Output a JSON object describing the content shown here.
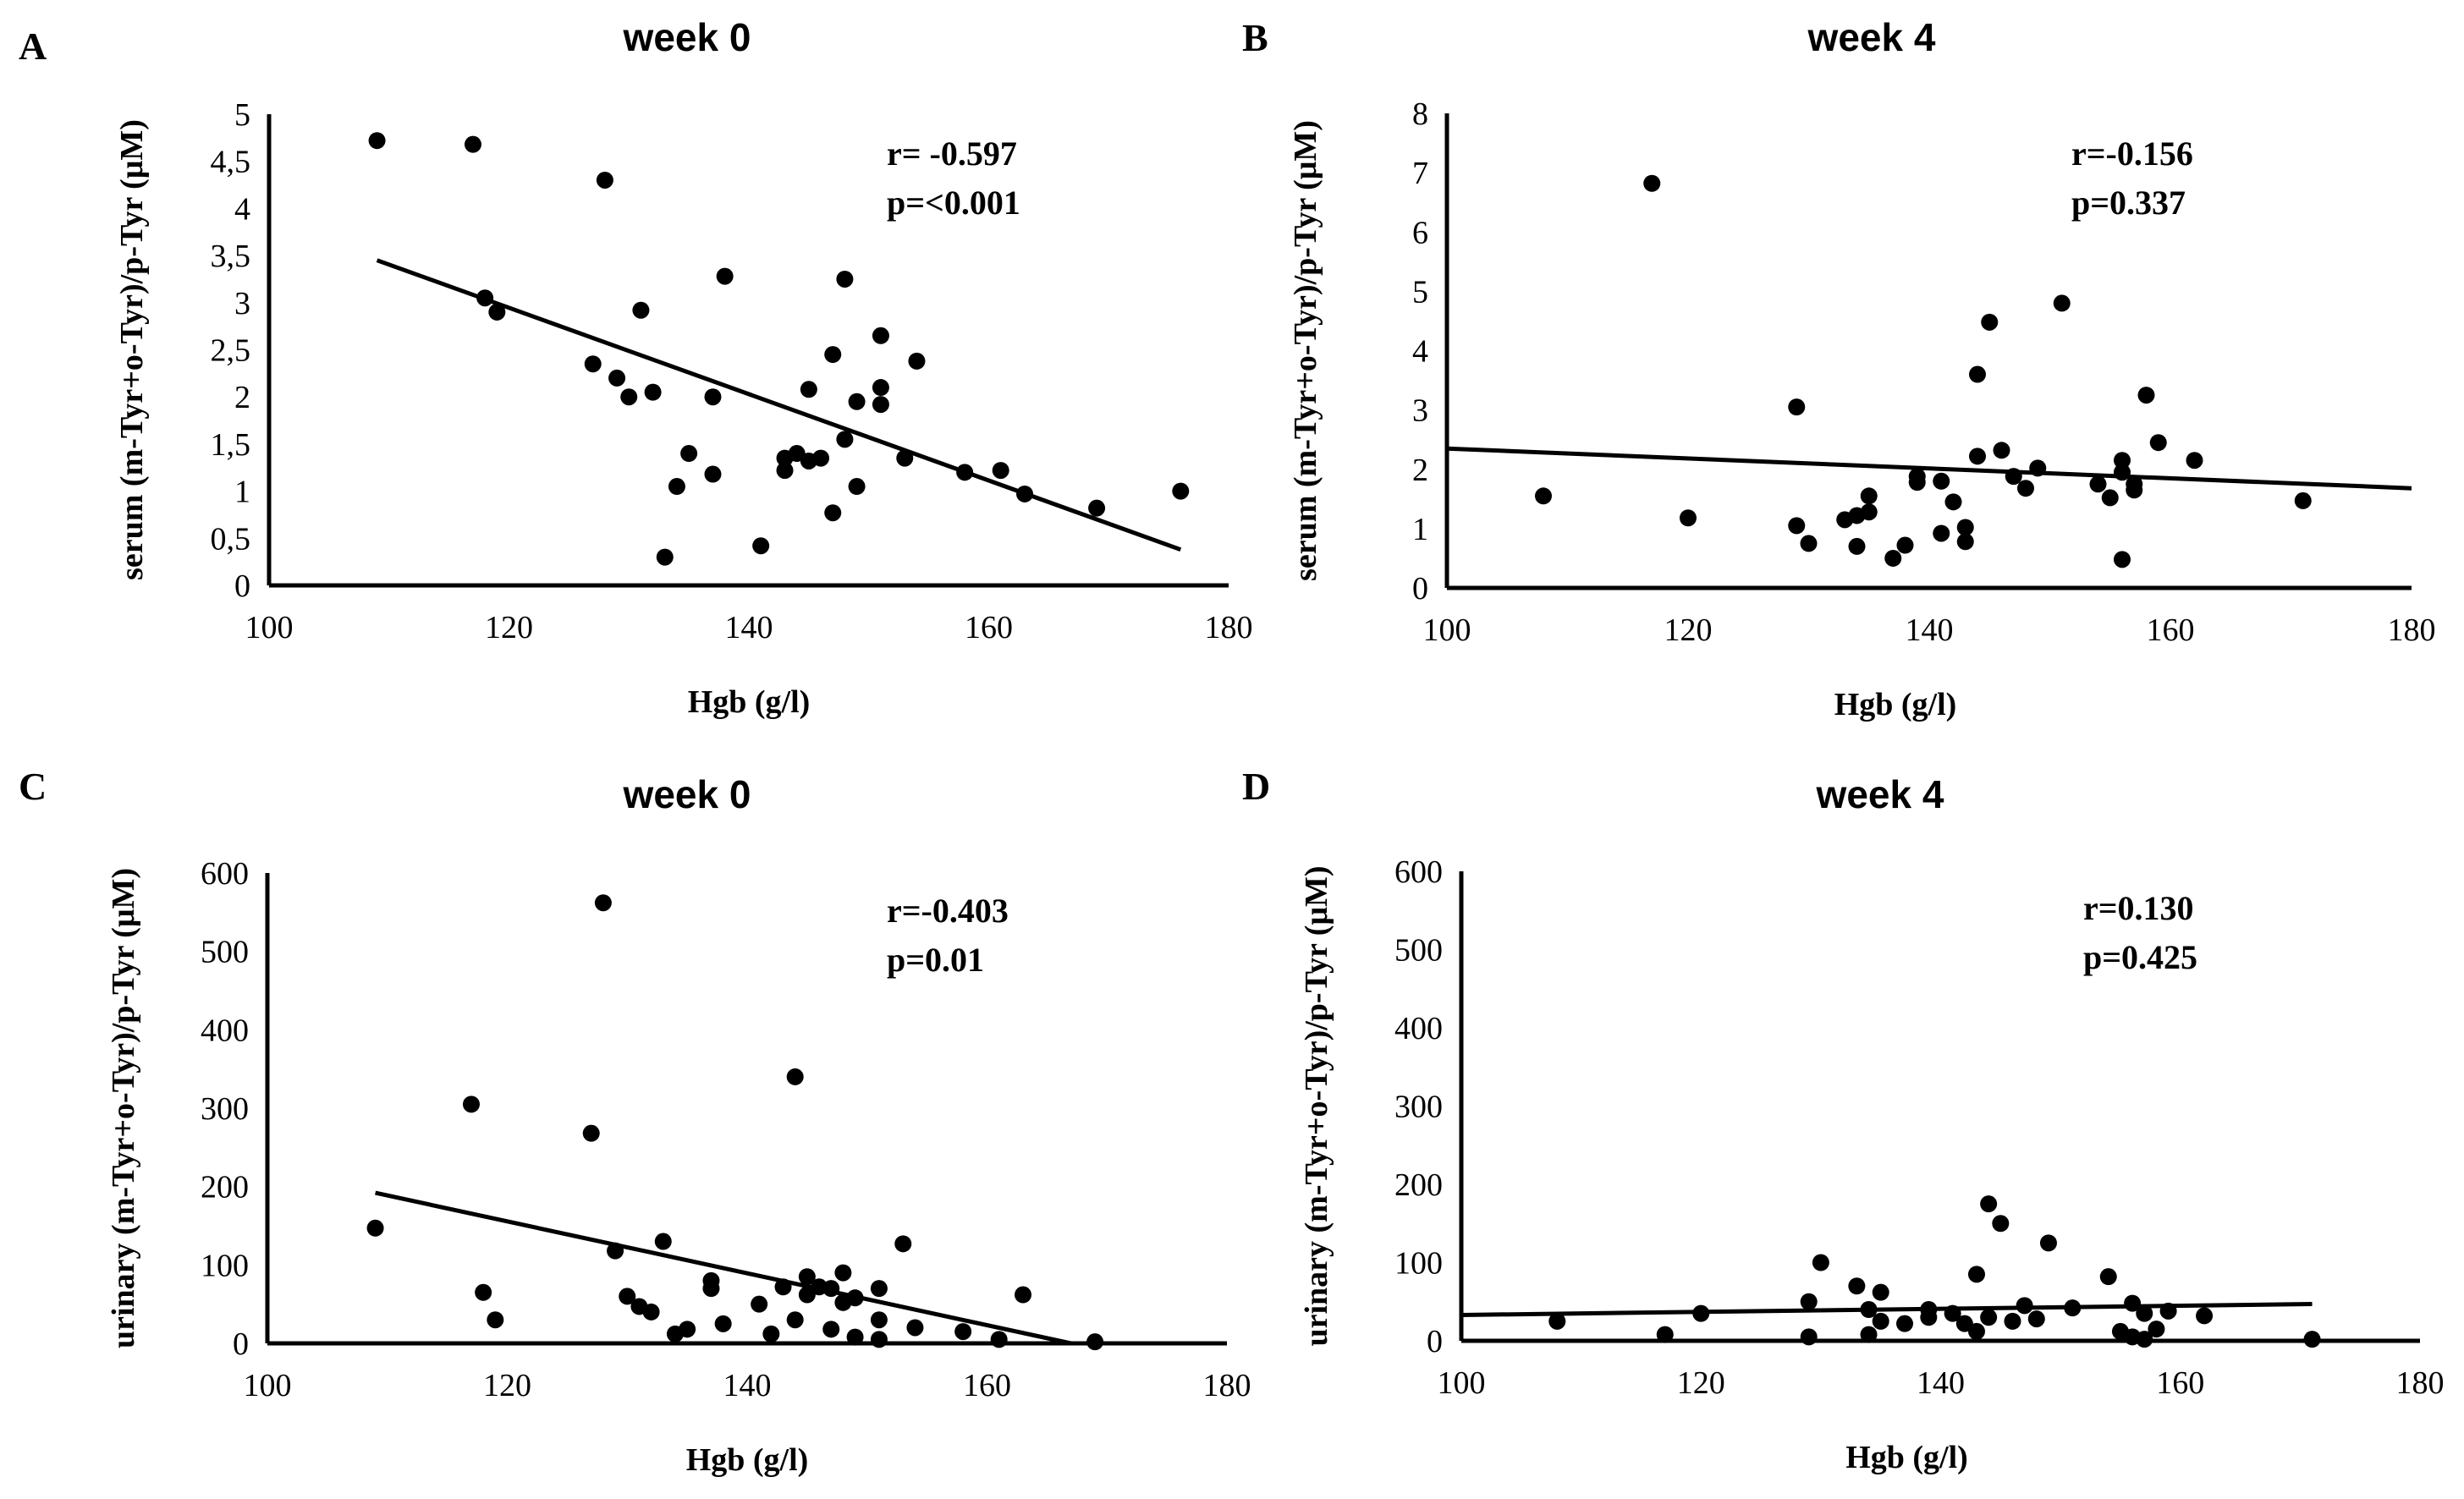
{
  "chart_data": [
    {
      "type": "scatter",
      "panel_letter": "A",
      "title": "week 0",
      "xlabel": "Hgb (g/l)",
      "ylabel": "serum (m-Tyr+o-Tyr)/p-Tyr  (μM)",
      "xlim": [
        100,
        180
      ],
      "ylim": [
        0,
        5
      ],
      "xticks": [
        100,
        120,
        140,
        160,
        180
      ],
      "xtick_labels": [
        "100",
        "120",
        "140",
        "160",
        "180"
      ],
      "yticks": [
        0,
        0.5,
        1,
        1.5,
        2,
        2.5,
        3,
        3.5,
        4,
        4.5,
        5
      ],
      "ytick_labels": [
        "0",
        "0,5",
        "1",
        "1,5",
        "2",
        "2,5",
        "3",
        "3,5",
        "4",
        "4,5",
        "5"
      ],
      "annotation": {
        "r": "r= -0.597",
        "p": "p=<0.001"
      },
      "trendline": {
        "x": [
          109,
          176
        ],
        "y": [
          3.45,
          0.38
        ]
      },
      "points": {
        "x": [
          109,
          117,
          118,
          119,
          127,
          128,
          129,
          130,
          131,
          132,
          133,
          134,
          135,
          137,
          137,
          138,
          141,
          143,
          143,
          144,
          145,
          145,
          146,
          147,
          147,
          148,
          148,
          149,
          149,
          151,
          151,
          151,
          153,
          154,
          158,
          161,
          163,
          169,
          176
        ],
        "y": [
          4.72,
          4.68,
          3.05,
          2.9,
          2.35,
          4.3,
          2.2,
          2.0,
          2.92,
          2.05,
          0.3,
          1.05,
          1.4,
          2.0,
          1.18,
          3.28,
          0.42,
          1.35,
          1.22,
          1.4,
          2.08,
          1.32,
          1.35,
          2.45,
          0.77,
          3.25,
          1.55,
          1.95,
          1.05,
          2.65,
          2.1,
          1.92,
          1.35,
          2.38,
          1.2,
          1.22,
          0.97,
          0.82,
          1.0
        ]
      }
    },
    {
      "type": "scatter",
      "panel_letter": "B",
      "title": "week 4",
      "xlabel": "Hgb (g/l)",
      "ylabel": "serum (m-Tyr+o-Tyr)/p-Tyr  (μM)",
      "xlim": [
        100,
        180
      ],
      "ylim": [
        0,
        8
      ],
      "xticks": [
        100,
        120,
        140,
        160,
        180
      ],
      "xtick_labels": [
        "100",
        "120",
        "140",
        "160",
        "180"
      ],
      "yticks": [
        0,
        1,
        2,
        3,
        4,
        5,
        6,
        7,
        8
      ],
      "ytick_labels": [
        "0",
        "1",
        "2",
        "3",
        "4",
        "5",
        "6",
        "7",
        "8"
      ],
      "annotation": {
        "r": "r=-0.156",
        "p": "p=0.337"
      },
      "trendline": {
        "x": [
          100,
          180
        ],
        "y": [
          2.35,
          1.68
        ]
      },
      "points": {
        "x": [
          108,
          117,
          120,
          129,
          129,
          130,
          133,
          134,
          134,
          135,
          135,
          137,
          138,
          139,
          139,
          141,
          141,
          142,
          143,
          143,
          144,
          144,
          145,
          146,
          147,
          148,
          149,
          151,
          154,
          155,
          156,
          156,
          156,
          157,
          157,
          158,
          159,
          162,
          171
        ],
        "y": [
          1.55,
          6.82,
          1.18,
          3.05,
          1.05,
          0.75,
          1.15,
          1.22,
          0.7,
          1.28,
          1.55,
          0.5,
          0.72,
          1.88,
          1.78,
          1.8,
          0.92,
          1.45,
          0.78,
          1.02,
          3.6,
          2.22,
          4.48,
          2.32,
          1.88,
          1.68,
          2.02,
          4.8,
          1.75,
          1.52,
          2.15,
          1.95,
          0.48,
          1.65,
          1.75,
          3.25,
          2.45,
          2.15,
          1.47
        ]
      }
    },
    {
      "type": "scatter",
      "panel_letter": "C",
      "title": "week 0",
      "xlabel": "Hgb (g/l)",
      "ylabel": "urinary (m-Tyr+o-Tyr)/p-Tyr  (μM)",
      "xlim": [
        100,
        180
      ],
      "ylim": [
        0,
        600
      ],
      "xticks": [
        100,
        120,
        140,
        160,
        180
      ],
      "xtick_labels": [
        "100",
        "120",
        "140",
        "160",
        "180"
      ],
      "yticks": [
        0,
        100,
        200,
        300,
        400,
        500,
        600
      ],
      "ytick_labels": [
        "0",
        "100",
        "200",
        "300",
        "400",
        "500",
        "600"
      ],
      "annotation": {
        "r": "r=-0.403",
        "p": "p=0.01"
      },
      "trendline": {
        "x": [
          109,
          167
        ],
        "y": [
          192,
          0
        ]
      },
      "points": {
        "x": [
          109,
          117,
          118,
          119,
          127,
          128,
          129,
          130,
          131,
          132,
          133,
          134,
          135,
          137,
          137,
          138,
          141,
          142,
          143,
          144,
          144,
          145,
          145,
          146,
          147,
          147,
          148,
          148,
          149,
          149,
          151,
          151,
          151,
          153,
          154,
          158,
          161,
          163,
          169
        ],
        "y": [
          147,
          305,
          65,
          30,
          268,
          562,
          118,
          60,
          47,
          40,
          130,
          12,
          18,
          70,
          80,
          25,
          50,
          12,
          72,
          340,
          30,
          85,
          62,
          72,
          70,
          18,
          90,
          52,
          8,
          58,
          5,
          30,
          70,
          127,
          20,
          15,
          5,
          62,
          2
        ]
      }
    },
    {
      "type": "scatter",
      "panel_letter": "D",
      "title": "week 4",
      "xlabel": "Hgb (g/l)",
      "ylabel": "urinary (m-Tyr+o-Tyr)/p-Tyr  (μM)",
      "xlim": [
        100,
        180
      ],
      "ylim": [
        0,
        600
      ],
      "xticks": [
        100,
        120,
        140,
        160,
        180
      ],
      "xtick_labels": [
        "100",
        "120",
        "140",
        "160",
        "180"
      ],
      "yticks": [
        0,
        100,
        200,
        300,
        400,
        500,
        600
      ],
      "ytick_labels": [
        "0",
        "100",
        "200",
        "300",
        "400",
        "500",
        "600"
      ],
      "annotation": {
        "r": "r=0.130",
        "p": "p=0.425"
      },
      "trendline": {
        "x": [
          100,
          171
        ],
        "y": [
          33,
          47
        ]
      },
      "points": {
        "x": [
          108,
          117,
          120,
          129,
          129,
          130,
          133,
          134,
          134,
          135,
          135,
          137,
          139,
          139,
          141,
          142,
          143,
          143,
          144,
          144,
          145,
          146,
          147,
          148,
          149,
          151,
          154,
          155,
          156,
          156,
          157,
          157,
          158,
          159,
          162,
          171
        ],
        "y": [
          25,
          8,
          35,
          50,
          5,
          100,
          70,
          40,
          8,
          62,
          25,
          22,
          40,
          30,
          35,
          22,
          85,
          12,
          175,
          30,
          150,
          25,
          45,
          28,
          125,
          42,
          82,
          12,
          48,
          5,
          35,
          2,
          15,
          38,
          32,
          2
        ]
      }
    }
  ]
}
